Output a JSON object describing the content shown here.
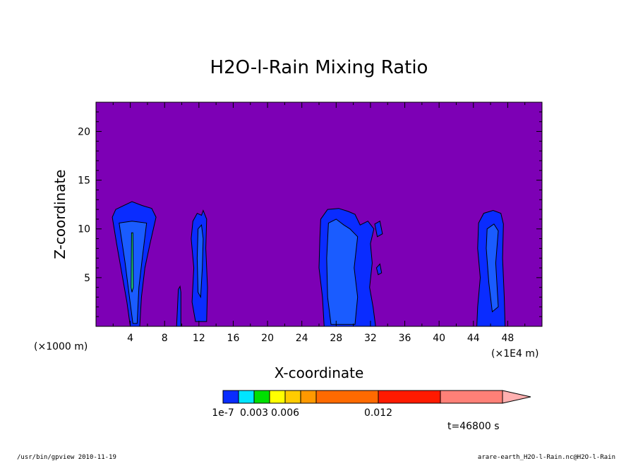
{
  "chart_data": {
    "type": "heatmap",
    "title": "H2O-l-Rain Mixing Ratio",
    "xlabel": "X-coordinate",
    "ylabel": "Z-coordinate",
    "x_unit_left": "(×1000 m)",
    "x_unit_right": "(×1E4 m)",
    "xlim": [
      0,
      52
    ],
    "ylim": [
      0,
      23
    ],
    "x_ticks": [
      "4",
      "8",
      "12",
      "16",
      "20",
      "24",
      "28",
      "32",
      "36",
      "40",
      "44",
      "48"
    ],
    "y_ticks": [
      "5",
      "10",
      "15",
      "20"
    ],
    "background_color": "#7d00b5",
    "colorbar": {
      "levels": [
        1e-07,
        0.0015,
        0.003,
        0.0045,
        0.006,
        0.0075,
        0.009,
        0.012
      ],
      "labels": [
        {
          "text": "1e-7",
          "at": 1e-07
        },
        {
          "text": "0.003",
          "at": 0.003
        },
        {
          "text": "0.006",
          "at": 0.006
        },
        {
          "text": "0.012",
          "at": 0.012
        }
      ],
      "colors": [
        "#0a2cff",
        "#00e5ff",
        "#00e000",
        "#ffff00",
        "#ffcc00",
        "#ff9900",
        "#ff6a00",
        "#ff1a00",
        "#ff8077"
      ],
      "extend_color": "#ffb0b0"
    },
    "regions": [
      {
        "name": "cell-1-outer",
        "level": 0,
        "color": "#0a2cff",
        "points": [
          [
            1.9,
            11.2
          ],
          [
            2.3,
            12.0
          ],
          [
            3.0,
            12.3
          ],
          [
            4.2,
            12.8
          ],
          [
            5.4,
            12.4
          ],
          [
            6.5,
            12.1
          ],
          [
            7.0,
            11.2
          ],
          [
            6.3,
            8.5
          ],
          [
            5.7,
            6.0
          ],
          [
            5.3,
            3.0
          ],
          [
            5.1,
            0
          ],
          [
            4.0,
            0
          ],
          [
            3.6,
            2.5
          ],
          [
            3.0,
            5.5
          ],
          [
            2.4,
            8.5
          ]
        ]
      },
      {
        "name": "cell-1-inner",
        "level": 1,
        "color": "#1a5cff",
        "points": [
          [
            2.7,
            10.6
          ],
          [
            4.2,
            10.8
          ],
          [
            5.9,
            10.6
          ],
          [
            5.4,
            7.0
          ],
          [
            5.0,
            4.0
          ],
          [
            4.8,
            0.3
          ],
          [
            4.3,
            0.3
          ],
          [
            3.9,
            3.0
          ],
          [
            3.4,
            6.5
          ]
        ]
      },
      {
        "name": "cell-1-core",
        "level": 2,
        "color": "#22dd88",
        "points": [
          [
            4.15,
            9.6
          ],
          [
            4.3,
            9.6
          ],
          [
            4.35,
            4.0
          ],
          [
            4.2,
            3.5
          ],
          [
            4.1,
            4.0
          ]
        ]
      },
      {
        "name": "cell-2-spike",
        "level": 0,
        "color": "#0a2cff",
        "points": [
          [
            9.4,
            0
          ],
          [
            9.6,
            3.8
          ],
          [
            9.8,
            4.1
          ],
          [
            9.9,
            3.5
          ],
          [
            9.9,
            0
          ]
        ]
      },
      {
        "name": "cell-3-outer",
        "level": 0,
        "color": "#0a2cff",
        "points": [
          [
            11.3,
            10.8
          ],
          [
            11.8,
            11.6
          ],
          [
            12.3,
            11.4
          ],
          [
            12.5,
            11.9
          ],
          [
            12.9,
            11.0
          ],
          [
            12.8,
            8.0
          ],
          [
            13.0,
            4.0
          ],
          [
            12.9,
            0.5
          ],
          [
            11.6,
            0.5
          ],
          [
            11.2,
            2.5
          ],
          [
            11.4,
            6.0
          ],
          [
            11.1,
            9.0
          ]
        ]
      },
      {
        "name": "cell-3-inner",
        "level": 1,
        "color": "#1a5cff",
        "points": [
          [
            11.9,
            10.0
          ],
          [
            12.3,
            10.4
          ],
          [
            12.5,
            9.0
          ],
          [
            12.4,
            6.0
          ],
          [
            12.2,
            3.0
          ],
          [
            11.9,
            3.5
          ],
          [
            11.8,
            7.0
          ]
        ]
      },
      {
        "name": "cell-4-outer",
        "level": 0,
        "color": "#0a2cff",
        "points": [
          [
            26.2,
            11.0
          ],
          [
            27.0,
            12.0
          ],
          [
            28.3,
            12.1
          ],
          [
            29.4,
            11.8
          ],
          [
            30.2,
            11.5
          ],
          [
            30.8,
            10.4
          ],
          [
            31.7,
            10.8
          ],
          [
            32.4,
            10.0
          ],
          [
            32.0,
            8.5
          ],
          [
            32.2,
            6.5
          ],
          [
            31.9,
            4.0
          ],
          [
            32.3,
            2.0
          ],
          [
            32.6,
            0
          ],
          [
            26.6,
            0
          ],
          [
            26.4,
            3.0
          ],
          [
            26.0,
            6.0
          ],
          [
            26.1,
            9.0
          ]
        ]
      },
      {
        "name": "cell-4-inner",
        "level": 1,
        "color": "#1a5cff",
        "points": [
          [
            27.1,
            10.6
          ],
          [
            28.0,
            11.0
          ],
          [
            28.9,
            10.4
          ],
          [
            29.6,
            10.0
          ],
          [
            30.5,
            9.2
          ],
          [
            30.1,
            6.0
          ],
          [
            30.5,
            3.0
          ],
          [
            30.2,
            0.2
          ],
          [
            27.4,
            0.2
          ],
          [
            27.0,
            3.0
          ],
          [
            26.9,
            7.0
          ]
        ]
      },
      {
        "name": "cell-4-patch-a",
        "level": 0,
        "color": "#0a2cff",
        "points": [
          [
            32.5,
            10.5
          ],
          [
            33.1,
            10.8
          ],
          [
            33.4,
            9.5
          ],
          [
            32.8,
            9.2
          ]
        ]
      },
      {
        "name": "cell-4-patch-b",
        "level": 0,
        "color": "#0a2cff",
        "points": [
          [
            32.7,
            6.0
          ],
          [
            33.1,
            6.4
          ],
          [
            33.3,
            5.5
          ],
          [
            32.9,
            5.3
          ]
        ]
      },
      {
        "name": "cell-5-outer",
        "level": 0,
        "color": "#0a2cff",
        "points": [
          [
            44.6,
            10.6
          ],
          [
            45.2,
            11.6
          ],
          [
            46.3,
            11.9
          ],
          [
            47.2,
            11.6
          ],
          [
            47.5,
            10.5
          ],
          [
            47.4,
            7.0
          ],
          [
            47.6,
            3.0
          ],
          [
            47.7,
            0
          ],
          [
            44.4,
            0
          ],
          [
            44.5,
            2.0
          ],
          [
            44.8,
            5.0
          ],
          [
            44.5,
            8.0
          ]
        ]
      },
      {
        "name": "cell-5-inner",
        "level": 1,
        "color": "#1a5cff",
        "points": [
          [
            45.6,
            10.0
          ],
          [
            46.4,
            10.5
          ],
          [
            46.9,
            9.8
          ],
          [
            46.6,
            6.5
          ],
          [
            46.9,
            2.0
          ],
          [
            46.2,
            1.5
          ],
          [
            45.8,
            4.5
          ],
          [
            45.5,
            8.0
          ]
        ]
      }
    ]
  },
  "time_label": "t=46800 s",
  "footer": {
    "left": "/usr/bin/gpview   2010-11-19",
    "right": "arare-earth_H2O-l-Rain.nc@H2O-l-Rain"
  }
}
